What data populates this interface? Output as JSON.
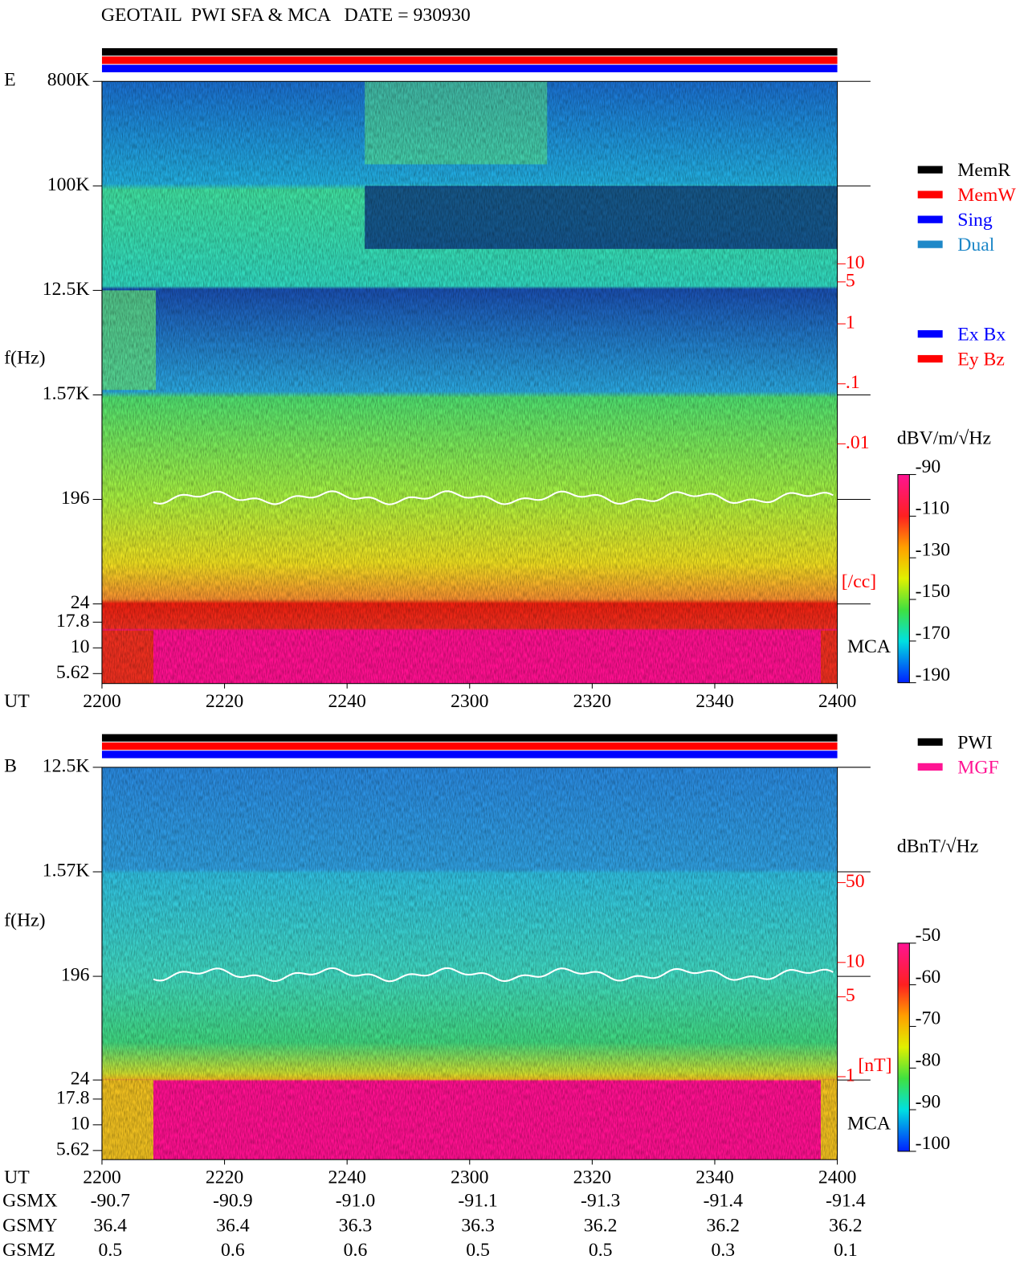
{
  "header": {
    "title": "GEOTAIL  PWI SFA & MCA   DATE = 930930"
  },
  "panels": [
    {
      "label": "E",
      "y_label": "f(Hz)",
      "x_label": "UT",
      "y_ticks": [
        "800K",
        "100K",
        "12.5K",
        "1.57K",
        "196",
        "24",
        "17.8",
        "10",
        "5.62"
      ],
      "x_ticks": [
        "2200",
        "2220",
        "2240",
        "2300",
        "2320",
        "2340",
        "2400"
      ],
      "mca_label": "MCA",
      "right_scale": {
        "unit": "[/cc]",
        "lim": [
          0.01,
          10
        ],
        "ticks": [
          10,
          5,
          1,
          {
            "value": 0.1,
            "label": ".1"
          },
          {
            "value": 0.01,
            "label": ".01"
          }
        ]
      },
      "legend": [
        {
          "name": "MemR",
          "color": "#000000"
        },
        {
          "name": "MemW",
          "color": "#ff0000"
        },
        {
          "name": "Sing",
          "color": "#0000ff"
        },
        {
          "name": "Dual",
          "color": "#1e88c8"
        }
      ],
      "legend2": [
        {
          "name": "Ex Bx",
          "color": "#0000ff"
        },
        {
          "name": "Ey Bz",
          "color": "#ff0000"
        }
      ],
      "colorbar": {
        "unit": "dBV/m/√Hz",
        "lim": [
          -190,
          -90
        ],
        "ticks": [
          -90,
          -110,
          -130,
          -150,
          -170,
          -190
        ]
      }
    },
    {
      "label": "B",
      "y_label": "f(Hz)",
      "x_label": "UT",
      "y_ticks": [
        "12.5K",
        "1.57K",
        "196",
        "24",
        "17.8",
        "10",
        "5.62"
      ],
      "x_ticks": [
        "2200",
        "2220",
        "2240",
        "2300",
        "2320",
        "2340",
        "2400"
      ],
      "mca_label": "MCA",
      "right_scale": {
        "unit": "[nT]",
        "lim": [
          1,
          50
        ],
        "ticks": [
          50,
          10,
          5,
          1
        ]
      },
      "legend": [
        {
          "name": "PWI",
          "color": "#000000"
        },
        {
          "name": "MGF",
          "color": "#ff1493"
        }
      ],
      "legend2": [],
      "colorbar": {
        "unit": "dBnT/√Hz",
        "lim": [
          -100,
          -50
        ],
        "ticks": [
          -50,
          -60,
          -70,
          -80,
          -90,
          -100
        ]
      }
    }
  ],
  "orbit": {
    "rows": [
      {
        "name": "GSMX",
        "values": [
          "-90.7",
          "-90.9",
          "-91.0",
          "-91.1",
          "-91.3",
          "-91.4",
          "-91.4"
        ]
      },
      {
        "name": "GSMY",
        "values": [
          "36.4",
          "36.4",
          "36.3",
          "36.3",
          "36.2",
          "36.2",
          "36.2"
        ]
      },
      {
        "name": "GSMZ",
        "values": [
          "0.5",
          "0.6",
          "0.6",
          "0.5",
          "0.5",
          "0.3",
          "0.1"
        ]
      }
    ]
  }
}
